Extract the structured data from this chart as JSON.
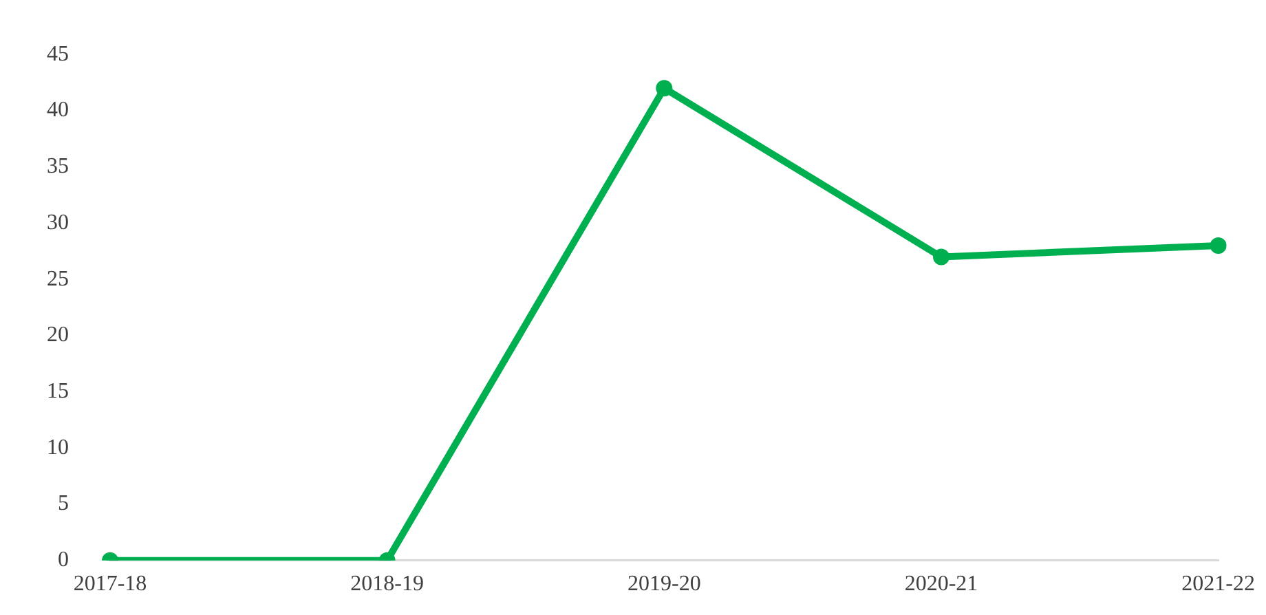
{
  "chart_data": {
    "type": "line",
    "categories": [
      "2017-18",
      "2018-19",
      "2019-20",
      "2020-21",
      "2021-22"
    ],
    "series": [
      {
        "color": "#00b050",
        "values": [
          0,
          0,
          42,
          27,
          28
        ]
      }
    ],
    "ylim": [
      0,
      45
    ],
    "yticks": [
      0,
      5,
      10,
      15,
      20,
      25,
      30,
      35,
      40,
      45
    ],
    "grid": false,
    "legend": false,
    "marker": "circle",
    "line_style": "solid"
  }
}
